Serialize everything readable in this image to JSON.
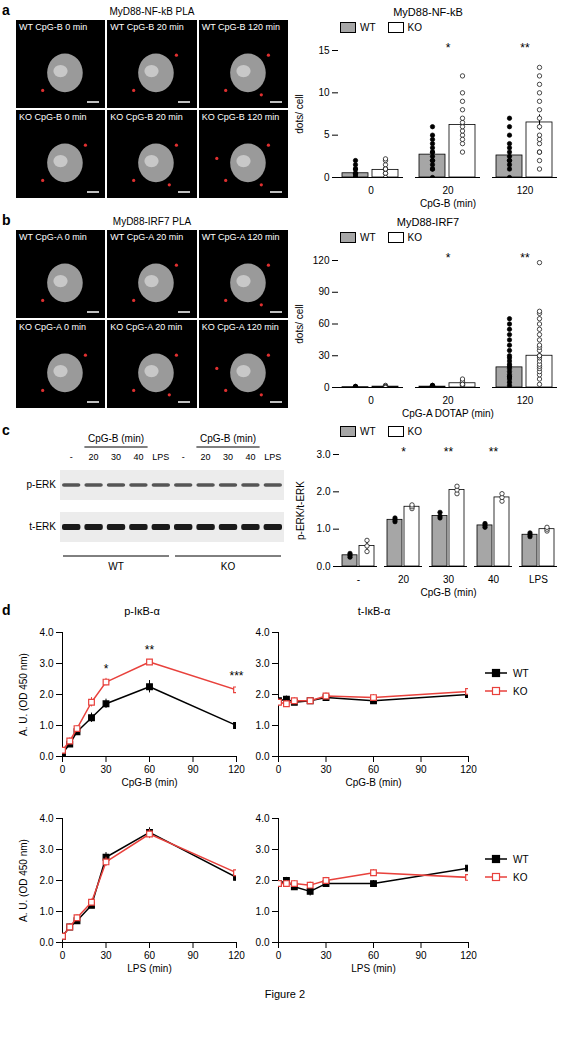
{
  "chart_data": [
    {
      "type": "bar",
      "title": "MyD88-NF-kB",
      "xlabel": "CpG-B (min)",
      "ylabel": "dots/ cell",
      "categories": [
        "0",
        "20",
        "120"
      ],
      "ylim": [
        0,
        15
      ],
      "yticks": [
        0,
        5,
        10,
        15
      ],
      "legend": "top",
      "annotations": [
        null,
        "*",
        "**"
      ],
      "series": [
        {
          "name": "WT",
          "color": "#a6a6a6",
          "marker": "circle",
          "values": [
            0.5,
            2.7,
            2.6
          ],
          "errors": [
            0.15,
            0.35,
            0.4
          ],
          "points": [
            [
              0,
              0,
              0.3,
              0.5,
              1,
              1,
              1.5,
              2,
              0,
              0.5
            ],
            [
              0,
              1,
              1.5,
              2,
              2.5,
              3,
              3.5,
              4,
              4.5,
              5,
              6,
              2,
              3,
              1
            ],
            [
              0,
              1,
              1.5,
              2,
              2.5,
              3,
              3.5,
              4,
              5,
              6,
              7,
              2
            ]
          ]
        },
        {
          "name": "KO",
          "color": "#ffffff",
          "marker": "open circle",
          "values": [
            0.9,
            6.2,
            6.5
          ],
          "errors": [
            0.2,
            0.8,
            0.9
          ],
          "points": [
            [
              0,
              0.5,
              1,
              1,
              1.5,
              2,
              2.2,
              0.5,
              0,
              1
            ],
            [
              3,
              4,
              5,
              5.5,
              6,
              6.5,
              7,
              8,
              9,
              10,
              12,
              4.5
            ],
            [
              1,
              2,
              3,
              4,
              4.5,
              5,
              6,
              7,
              8,
              9,
              10,
              11,
              12,
              13,
              3
            ]
          ]
        }
      ]
    },
    {
      "type": "bar",
      "title": "MyD88-IRF7",
      "xlabel": "CpG-A DOTAP (min)",
      "ylabel": "dots/ cell",
      "categories": [
        "0",
        "20",
        "120"
      ],
      "ylim": [
        0,
        120
      ],
      "yticks": [
        0,
        30,
        60,
        90,
        120
      ],
      "legend": "top",
      "annotations": [
        null,
        "*",
        "**"
      ],
      "series": [
        {
          "name": "WT",
          "color": "#a6a6a6",
          "marker": "circle",
          "values": [
            0.3,
            0.8,
            19
          ],
          "errors": [
            0.1,
            0.2,
            2
          ],
          "points": [
            [
              0,
              0,
              1,
              0,
              0.5,
              1
            ],
            [
              0,
              1,
              2,
              1,
              0.5,
              2
            ],
            [
              2,
              5,
              8,
              10,
              12,
              15,
              18,
              20,
              22,
              25,
              28,
              30,
              35,
              40,
              45,
              50,
              55,
              60,
              65,
              10
            ]
          ]
        },
        {
          "name": "KO",
          "color": "#ffffff",
          "marker": "open circle",
          "values": [
            0.8,
            4,
            30
          ],
          "errors": [
            0.2,
            0.8,
            3
          ],
          "points": [
            [
              0,
              1,
              2,
              1,
              0.5,
              0
            ],
            [
              2,
              3,
              4,
              5,
              6,
              8,
              3
            ],
            [
              3,
              8,
              12,
              15,
              18,
              20,
              22,
              25,
              28,
              30,
              35,
              38,
              40,
              45,
              50,
              55,
              60,
              65,
              70,
              72,
              118,
              30
            ]
          ]
        }
      ]
    },
    {
      "type": "bar",
      "xlabel": "CpG-B (min)",
      "ylabel": "p-ERK/t-ERK",
      "categories": [
        "-",
        "20",
        "30",
        "40",
        "LPS"
      ],
      "ylim": [
        0,
        3
      ],
      "yticks": [
        0,
        1,
        2,
        3
      ],
      "legend": "top",
      "annotations": [
        null,
        "*",
        "**",
        "**",
        null
      ],
      "series": [
        {
          "name": "WT",
          "color": "#a6a6a6",
          "marker": "circle",
          "values": [
            0.3,
            1.25,
            1.35,
            1.1,
            0.85
          ],
          "errors": [
            0.05,
            0.05,
            0.08,
            0.06,
            0.05
          ],
          "points": [
            [
              0.25,
              0.3,
              0.35
            ],
            [
              1.2,
              1.25,
              1.3
            ],
            [
              1.3,
              1.35,
              1.45
            ],
            [
              1.05,
              1.1,
              1.15
            ],
            [
              0.8,
              0.85,
              0.9
            ]
          ]
        },
        {
          "name": "KO",
          "color": "#ffffff",
          "marker": "open circle",
          "values": [
            0.55,
            1.6,
            2.05,
            1.85,
            1.0
          ],
          "errors": [
            0.1,
            0.05,
            0.08,
            0.08,
            0.05
          ],
          "points": [
            [
              0.4,
              0.55,
              0.7
            ],
            [
              1.55,
              1.6,
              1.65
            ],
            [
              1.95,
              2.05,
              2.15
            ],
            [
              1.75,
              1.85,
              1.95
            ],
            [
              0.95,
              1.0,
              1.05
            ]
          ]
        }
      ]
    },
    {
      "type": "line",
      "title": "p-IκB-α",
      "xlabel": "CpG-B (min)",
      "ylabel": "A. U. (OD 450 nm)",
      "x": [
        0,
        5,
        10,
        20,
        30,
        60,
        120
      ],
      "xlim": [
        0,
        120
      ],
      "xticks": [
        0,
        30,
        60,
        90,
        120
      ],
      "ylim": [
        0,
        4
      ],
      "yticks": [
        0,
        1,
        2,
        3,
        4
      ],
      "legend": "right",
      "annotations": [
        {
          "x": 30,
          "label": "*"
        },
        {
          "x": 60,
          "label": "**"
        },
        {
          "x": 120,
          "label": "***"
        }
      ],
      "series": [
        {
          "name": "WT",
          "color": "#000000",
          "marker": "square",
          "values": [
            0.1,
            0.4,
            0.8,
            1.25,
            1.7,
            2.25,
            1.0
          ],
          "errors": [
            0.05,
            0.1,
            0.1,
            0.15,
            0.15,
            0.2,
            0.1
          ]
        },
        {
          "name": "KO",
          "color": "#e8413c",
          "marker": "open square",
          "values": [
            0.2,
            0.5,
            0.9,
            1.75,
            2.4,
            3.05,
            2.15
          ],
          "errors": [
            0.05,
            0.1,
            0.1,
            0.15,
            0.12,
            0.08,
            0.15
          ]
        }
      ]
    },
    {
      "type": "line",
      "title": "t-IκB-α",
      "xlabel": "CpG-B (min)",
      "x": [
        0,
        5,
        10,
        20,
        30,
        60,
        120
      ],
      "xlim": [
        0,
        120
      ],
      "xticks": [
        0,
        30,
        60,
        90,
        120
      ],
      "ylim": [
        0,
        4
      ],
      "yticks": [
        0,
        1,
        2,
        3,
        4
      ],
      "legend": "right",
      "series": [
        {
          "name": "WT",
          "color": "#000000",
          "marker": "square",
          "values": [
            1.8,
            1.85,
            1.75,
            1.8,
            1.9,
            1.8,
            2.0
          ],
          "errors": [
            0.1,
            0.1,
            0.1,
            0.1,
            0.1,
            0.1,
            0.1
          ]
        },
        {
          "name": "KO",
          "color": "#e8413c",
          "marker": "open square",
          "values": [
            1.75,
            1.7,
            1.8,
            1.8,
            1.95,
            1.9,
            2.1
          ],
          "errors": [
            0.1,
            0.1,
            0.1,
            0.1,
            0.1,
            0.1,
            0.1
          ]
        }
      ]
    },
    {
      "type": "line",
      "xlabel": "LPS (min)",
      "ylabel": "A. U. (OD 450 nm)",
      "x": [
        0,
        5,
        10,
        20,
        30,
        60,
        120
      ],
      "xlim": [
        0,
        120
      ],
      "xticks": [
        0,
        30,
        60,
        90,
        120
      ],
      "ylim": [
        0,
        4
      ],
      "yticks": [
        0,
        1,
        2,
        3,
        4
      ],
      "legend": "right",
      "series": [
        {
          "name": "WT",
          "color": "#000000",
          "marker": "square",
          "values": [
            0.2,
            0.5,
            0.7,
            1.2,
            2.75,
            3.55,
            2.1
          ],
          "errors": [
            0.05,
            0.1,
            0.1,
            0.1,
            0.15,
            0.15,
            0.1
          ]
        },
        {
          "name": "KO",
          "color": "#e8413c",
          "marker": "open square",
          "values": [
            0.2,
            0.5,
            0.8,
            1.3,
            2.6,
            3.5,
            2.25
          ],
          "errors": [
            0.05,
            0.1,
            0.1,
            0.1,
            0.15,
            0.15,
            0.1
          ]
        }
      ]
    },
    {
      "type": "line",
      "xlabel": "LPS (min)",
      "x": [
        0,
        5,
        10,
        20,
        30,
        60,
        120
      ],
      "xlim": [
        0,
        120
      ],
      "xticks": [
        0,
        30,
        60,
        90,
        120
      ],
      "ylim": [
        0,
        4
      ],
      "yticks": [
        0,
        1,
        2,
        3,
        4
      ],
      "legend": "right",
      "series": [
        {
          "name": "WT",
          "color": "#000000",
          "marker": "square",
          "values": [
            1.9,
            2.0,
            1.8,
            1.65,
            1.9,
            1.9,
            2.4
          ],
          "errors": [
            0.1,
            0.1,
            0.1,
            0.15,
            0.1,
            0.1,
            0.1
          ]
        },
        {
          "name": "KO",
          "color": "#e8413c",
          "marker": "open square",
          "values": [
            1.9,
            1.9,
            1.9,
            1.85,
            2.0,
            2.25,
            2.1
          ],
          "errors": [
            0.1,
            0.1,
            0.1,
            0.1,
            0.1,
            0.1,
            0.1
          ]
        }
      ]
    }
  ],
  "figure": {
    "panel_labels": [
      "a",
      "b",
      "c",
      "d"
    ],
    "images": [
      {
        "title": "MyD88-NF-kB PLA",
        "labels": [
          "WT CpG-B 0 min",
          "WT CpG-B 20 min",
          "WT CpG-B 120 min",
          "KO CpG-B 0 min",
          "KO CpG-B 20 min",
          "KO CpG-B 120 min"
        ]
      },
      {
        "title": "MyD88-IRF7 PLA",
        "labels": [
          "WT CpG-A 0 min",
          "WT CpG-A 20 min",
          "WT CpG-A 120 min",
          "KO CpG-A 0 min",
          "KO CpG-A 20 min",
          "KO CpG-A 120 min"
        ]
      }
    ],
    "blot": {
      "rows": [
        "p-ERK",
        "t-ERK"
      ],
      "header": "CpG-B (min)",
      "lanes": [
        "-",
        "20",
        "30",
        "40",
        "LPS"
      ],
      "groups": [
        "WT",
        "KO"
      ]
    },
    "caption": "Figure 2"
  }
}
